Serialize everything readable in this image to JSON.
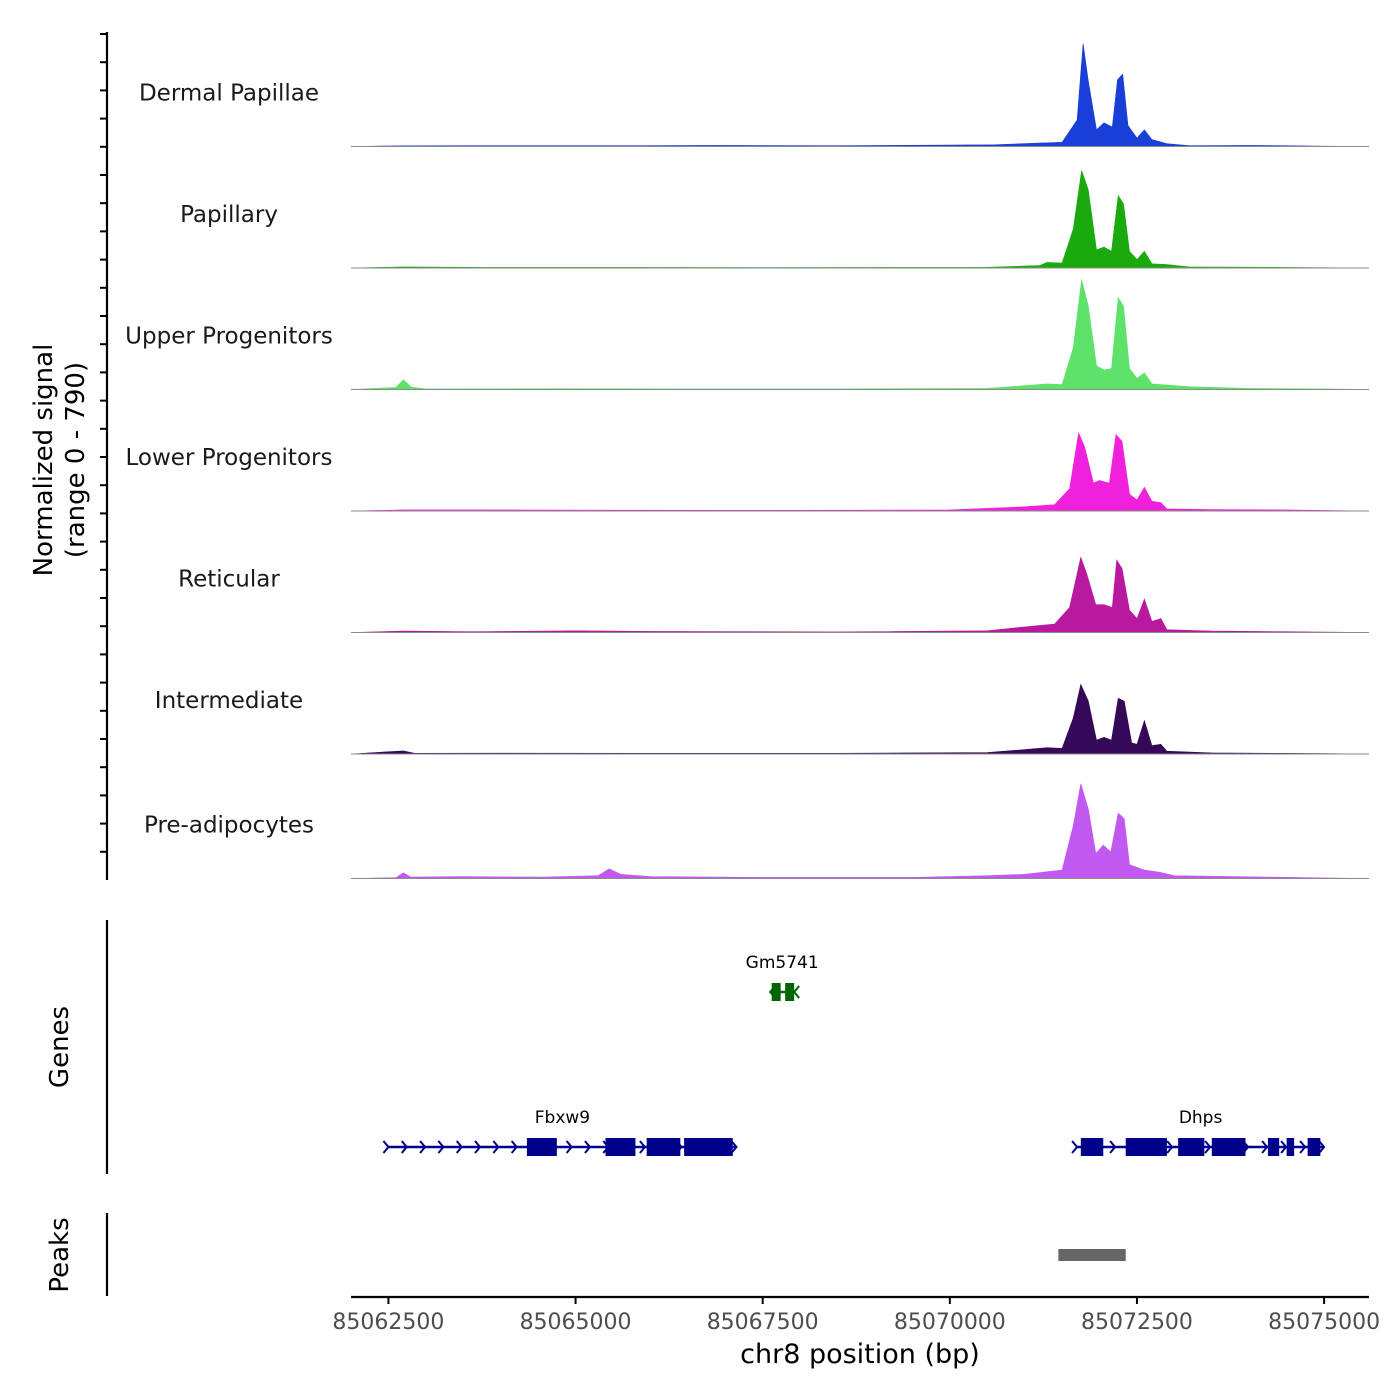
{
  "chart_data": {
    "type": "area",
    "title": "",
    "chromosome": "chr8",
    "xlabel": "chr8 position (bp)",
    "ylabel_line1": "Normalized signal",
    "ylabel_line2": "(range 0 - 790)",
    "y_range": [
      0,
      790
    ],
    "xlim": [
      85062000,
      85075600
    ],
    "x_ticks": [
      85062500,
      85065000,
      85067500,
      85070000,
      85072500,
      85075000
    ],
    "x_tick_labels": [
      "85062500",
      "85065000",
      "85067500",
      "85070000",
      "85072500",
      "85075000"
    ],
    "tracks": [
      {
        "name": "Dermal Papillae",
        "color": "#1a3fd6",
        "points": [
          [
            85062000,
            0
          ],
          [
            85062700,
            5
          ],
          [
            85063800,
            6
          ],
          [
            85065500,
            6
          ],
          [
            85066900,
            8
          ],
          [
            85068500,
            6
          ],
          [
            85070600,
            12
          ],
          [
            85071200,
            25
          ],
          [
            85071500,
            30
          ],
          [
            85071700,
            190
          ],
          [
            85071780,
            740
          ],
          [
            85071850,
            470
          ],
          [
            85071960,
            120
          ],
          [
            85072060,
            170
          ],
          [
            85072170,
            140
          ],
          [
            85072240,
            480
          ],
          [
            85072310,
            520
          ],
          [
            85072380,
            150
          ],
          [
            85072500,
            60
          ],
          [
            85072600,
            120
          ],
          [
            85072700,
            50
          ],
          [
            85072900,
            20
          ],
          [
            85073200,
            6
          ],
          [
            85074000,
            8
          ],
          [
            85074600,
            5
          ],
          [
            85075000,
            2
          ],
          [
            85075600,
            0
          ]
        ]
      },
      {
        "name": "Papillary",
        "color": "#1aaa0e",
        "points": [
          [
            85062000,
            0
          ],
          [
            85062700,
            8
          ],
          [
            85063800,
            4
          ],
          [
            85065500,
            4
          ],
          [
            85067500,
            3
          ],
          [
            85070500,
            5
          ],
          [
            85071200,
            18
          ],
          [
            85071300,
            40
          ],
          [
            85071500,
            35
          ],
          [
            85071650,
            280
          ],
          [
            85071760,
            700
          ],
          [
            85071850,
            560
          ],
          [
            85071960,
            130
          ],
          [
            85072060,
            150
          ],
          [
            85072160,
            120
          ],
          [
            85072250,
            520
          ],
          [
            85072320,
            460
          ],
          [
            85072400,
            120
          ],
          [
            85072500,
            60
          ],
          [
            85072600,
            120
          ],
          [
            85072700,
            30
          ],
          [
            85072900,
            25
          ],
          [
            85073200,
            8
          ],
          [
            85074000,
            6
          ],
          [
            85075000,
            2
          ],
          [
            85075600,
            0
          ]
        ]
      },
      {
        "name": "Upper Progenitors",
        "color": "#5ee26a",
        "points": [
          [
            85062000,
            0
          ],
          [
            85062600,
            15
          ],
          [
            85062700,
            70
          ],
          [
            85062800,
            18
          ],
          [
            85063000,
            4
          ],
          [
            85064800,
            6
          ],
          [
            85066500,
            4
          ],
          [
            85068500,
            4
          ],
          [
            85070500,
            8
          ],
          [
            85071300,
            40
          ],
          [
            85071500,
            35
          ],
          [
            85071650,
            300
          ],
          [
            85071760,
            790
          ],
          [
            85071850,
            600
          ],
          [
            85071960,
            170
          ],
          [
            85072060,
            140
          ],
          [
            85072160,
            150
          ],
          [
            85072250,
            660
          ],
          [
            85072320,
            600
          ],
          [
            85072400,
            150
          ],
          [
            85072500,
            80
          ],
          [
            85072600,
            120
          ],
          [
            85072700,
            40
          ],
          [
            85073200,
            20
          ],
          [
            85074000,
            8
          ],
          [
            85075000,
            4
          ],
          [
            85075600,
            0
          ]
        ]
      },
      {
        "name": "Lower Progenitors",
        "color": "#f021dc",
        "points": [
          [
            85062000,
            0
          ],
          [
            85062700,
            8
          ],
          [
            85063800,
            8
          ],
          [
            85065500,
            6
          ],
          [
            85067000,
            5
          ],
          [
            85068800,
            6
          ],
          [
            85070000,
            8
          ],
          [
            85071000,
            30
          ],
          [
            85071400,
            45
          ],
          [
            85071600,
            160
          ],
          [
            85071720,
            560
          ],
          [
            85071800,
            460
          ],
          [
            85071920,
            200
          ],
          [
            85072000,
            220
          ],
          [
            85072130,
            200
          ],
          [
            85072220,
            550
          ],
          [
            85072300,
            500
          ],
          [
            85072400,
            120
          ],
          [
            85072500,
            80
          ],
          [
            85072600,
            170
          ],
          [
            85072700,
            70
          ],
          [
            85072820,
            60
          ],
          [
            85072900,
            15
          ],
          [
            85073500,
            10
          ],
          [
            85074500,
            8
          ],
          [
            85075000,
            4
          ],
          [
            85075600,
            0
          ]
        ]
      },
      {
        "name": "Reticular",
        "color": "#b8199e",
        "points": [
          [
            85062000,
            0
          ],
          [
            85062700,
            10
          ],
          [
            85063600,
            6
          ],
          [
            85065000,
            12
          ],
          [
            85066000,
            8
          ],
          [
            85067500,
            6
          ],
          [
            85068500,
            4
          ],
          [
            85070500,
            12
          ],
          [
            85071000,
            40
          ],
          [
            85071400,
            60
          ],
          [
            85071600,
            180
          ],
          [
            85071750,
            540
          ],
          [
            85071830,
            420
          ],
          [
            85071950,
            200
          ],
          [
            85072060,
            200
          ],
          [
            85072170,
            180
          ],
          [
            85072230,
            520
          ],
          [
            85072300,
            460
          ],
          [
            85072400,
            160
          ],
          [
            85072500,
            100
          ],
          [
            85072600,
            240
          ],
          [
            85072700,
            80
          ],
          [
            85072820,
            100
          ],
          [
            85072900,
            20
          ],
          [
            85073500,
            10
          ],
          [
            85074500,
            6
          ],
          [
            85075000,
            3
          ],
          [
            85075600,
            0
          ]
        ]
      },
      {
        "name": "Intermediate",
        "color": "#350957",
        "points": [
          [
            85062000,
            0
          ],
          [
            85062700,
            22
          ],
          [
            85062850,
            5
          ],
          [
            85064000,
            6
          ],
          [
            85066000,
            5
          ],
          [
            85068500,
            5
          ],
          [
            85070500,
            10
          ],
          [
            85071300,
            45
          ],
          [
            85071500,
            40
          ],
          [
            85071650,
            260
          ],
          [
            85071750,
            500
          ],
          [
            85071850,
            380
          ],
          [
            85071960,
            100
          ],
          [
            85072060,
            120
          ],
          [
            85072160,
            100
          ],
          [
            85072250,
            400
          ],
          [
            85072330,
            380
          ],
          [
            85072430,
            80
          ],
          [
            85072500,
            70
          ],
          [
            85072600,
            240
          ],
          [
            85072700,
            60
          ],
          [
            85072820,
            70
          ],
          [
            85072900,
            20
          ],
          [
            85073500,
            8
          ],
          [
            85075000,
            3
          ],
          [
            85075600,
            0
          ]
        ]
      },
      {
        "name": "Pre-adipocytes",
        "color": "#c158f0",
        "points": [
          [
            85062000,
            0
          ],
          [
            85062600,
            6
          ],
          [
            85062700,
            40
          ],
          [
            85062800,
            10
          ],
          [
            85063500,
            14
          ],
          [
            85064600,
            10
          ],
          [
            85065300,
            20
          ],
          [
            85065450,
            70
          ],
          [
            85065600,
            30
          ],
          [
            85066000,
            14
          ],
          [
            85067500,
            8
          ],
          [
            85069500,
            8
          ],
          [
            85070500,
            20
          ],
          [
            85071000,
            30
          ],
          [
            85071500,
            60
          ],
          [
            85071650,
            380
          ],
          [
            85071750,
            680
          ],
          [
            85071850,
            500
          ],
          [
            85071950,
            180
          ],
          [
            85072050,
            240
          ],
          [
            85072150,
            190
          ],
          [
            85072250,
            470
          ],
          [
            85072330,
            430
          ],
          [
            85072400,
            100
          ],
          [
            85072600,
            60
          ],
          [
            85072800,
            45
          ],
          [
            85073000,
            20
          ],
          [
            85074000,
            12
          ],
          [
            85075000,
            4
          ],
          [
            85075600,
            0
          ]
        ]
      }
    ],
    "genes_label": "Genes",
    "genes": [
      {
        "name": "Gm5741",
        "color": "#006400",
        "strand": "-",
        "start": 85067600,
        "end": 85067920,
        "row": 0,
        "exons": [
          [
            85067620,
            85067740
          ],
          [
            85067800,
            85067920
          ]
        ]
      },
      {
        "name": "Fbxw9",
        "color": "#00008b",
        "strand": "+",
        "start": 85062500,
        "end": 85067150,
        "row": 1,
        "exons": [
          [
            85064350,
            85064750
          ],
          [
            85065400,
            85065800
          ],
          [
            85065950,
            85066400
          ],
          [
            85066450,
            85067100
          ]
        ]
      },
      {
        "name": "Dhps",
        "color": "#00008b",
        "strand": "+",
        "start": 85071700,
        "end": 85075000,
        "row": 1,
        "exons": [
          [
            85071750,
            85072050
          ],
          [
            85072350,
            85072900
          ],
          [
            85073050,
            85073400
          ],
          [
            85073500,
            85073950
          ],
          [
            85074250,
            85074400
          ],
          [
            85074500,
            85074600
          ],
          [
            85074780,
            85074950
          ]
        ]
      }
    ],
    "peaks_label": "Peaks",
    "peaks": [
      {
        "start": 85071450,
        "end": 85072350,
        "color": "#666666"
      }
    ]
  }
}
